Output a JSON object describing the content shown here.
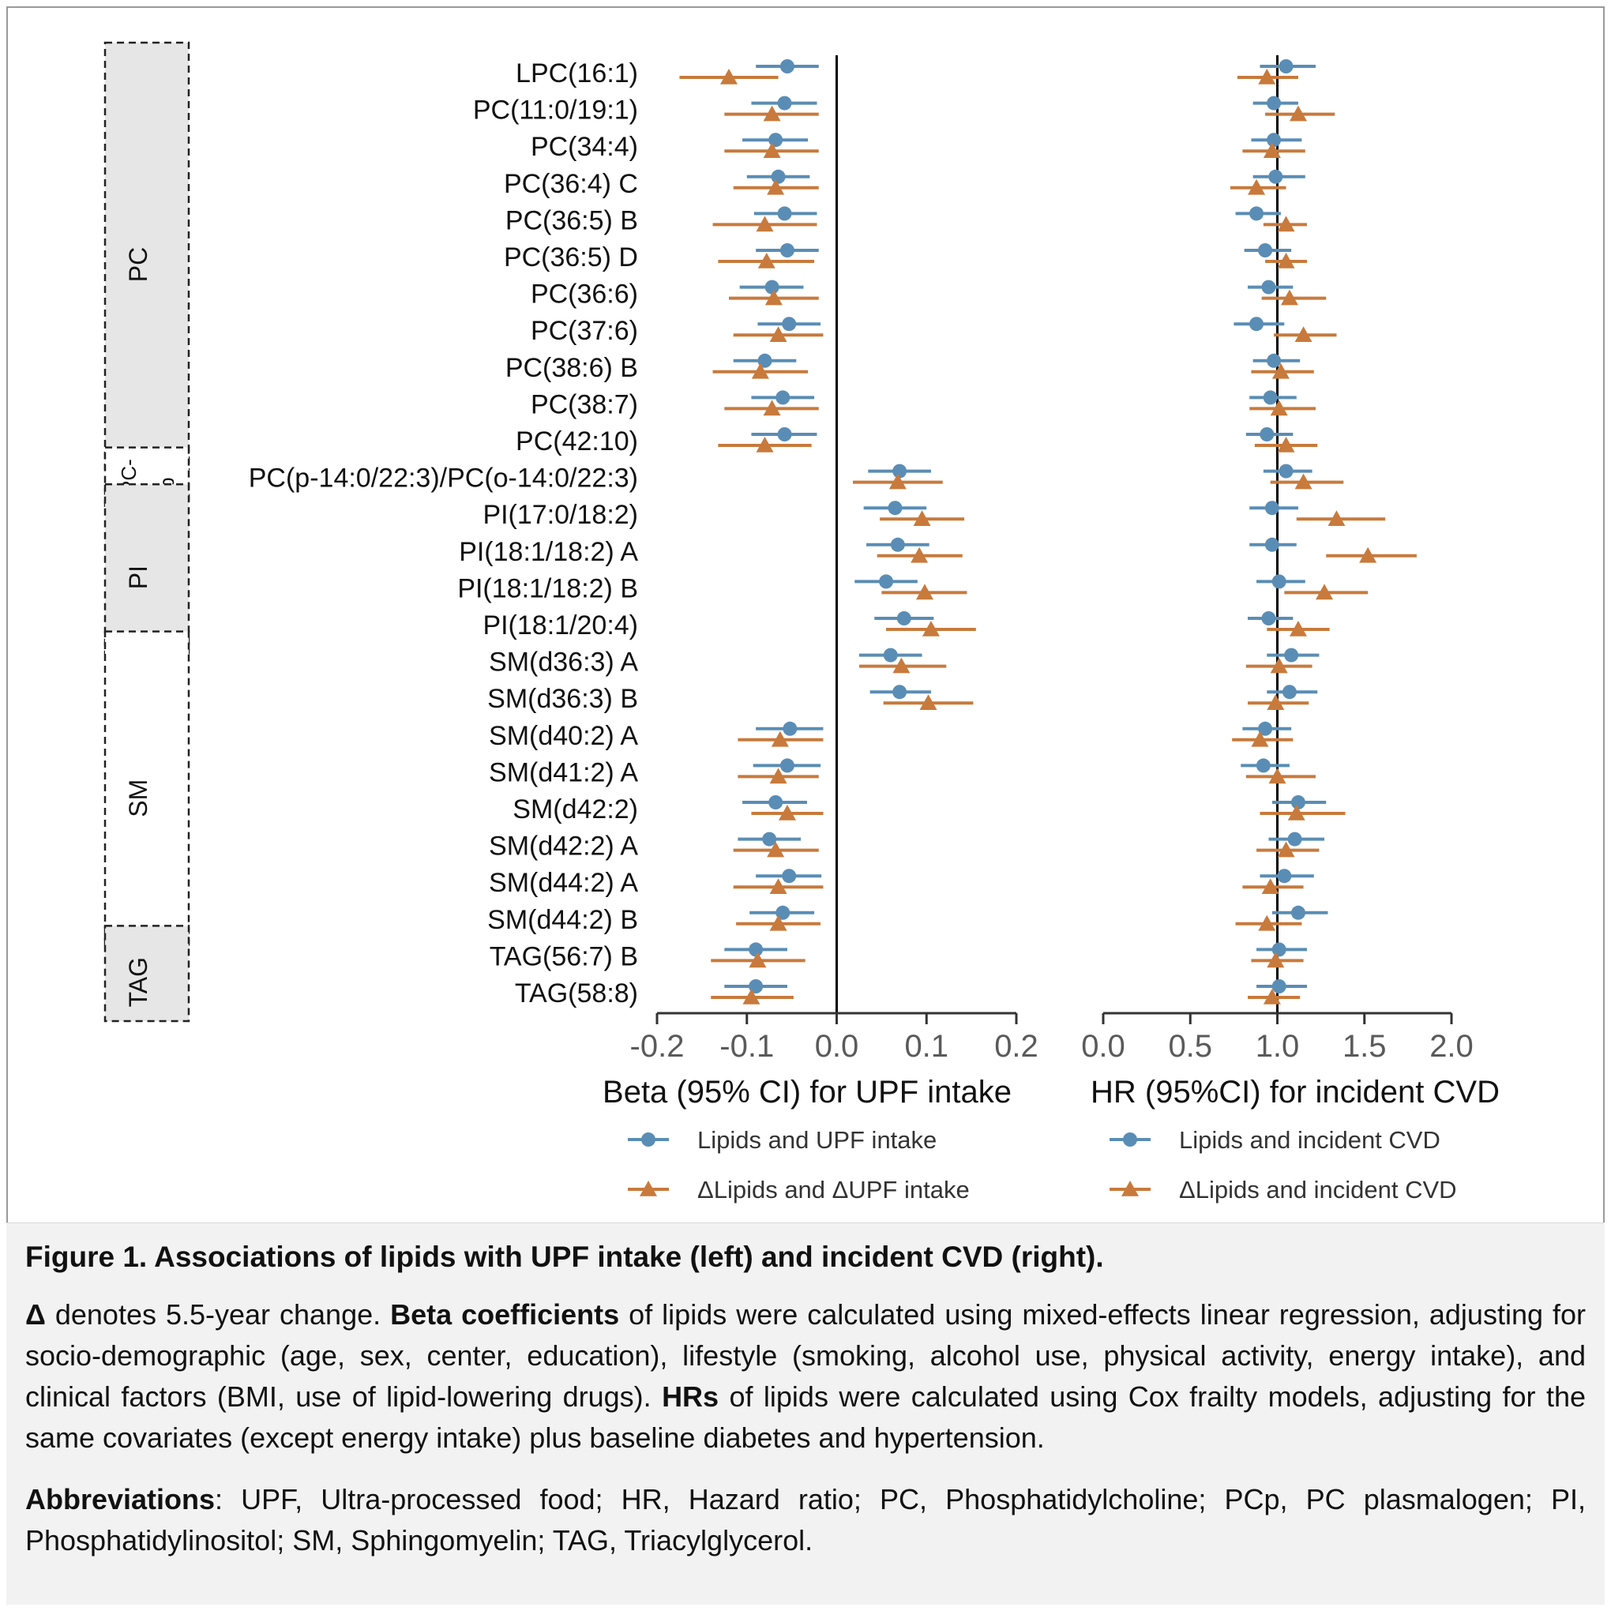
{
  "colors": {
    "blue": "#5a8db5",
    "orange": "#c87a3c",
    "axis": "#000000",
    "tick": "#5a5a5a",
    "group_fill": "#e6e6e6"
  },
  "chart_data": [
    {
      "type": "forest",
      "xlabel": "Beta (95% CI) for UPF intake",
      "xlim": [
        -0.2,
        0.2
      ],
      "ticks": [
        -0.2,
        -0.1,
        0.0,
        0.1,
        0.2
      ],
      "tick_labels": [
        "-0.2",
        "-0.1",
        "0.0",
        "0.1",
        "0.2"
      ],
      "reference": 0,
      "series": [
        {
          "name": "Lipids and UPF intake",
          "marker": "circle",
          "estimates": [
            -0.055,
            -0.058,
            -0.068,
            -0.065,
            -0.058,
            -0.055,
            -0.072,
            -0.053,
            -0.08,
            -0.06,
            -0.058,
            0.07,
            0.065,
            0.068,
            0.055,
            0.075,
            0.06,
            0.07,
            -0.052,
            -0.055,
            -0.068,
            -0.075,
            -0.053,
            -0.06,
            -0.09,
            -0.09
          ],
          "lower": [
            -0.09,
            -0.095,
            -0.105,
            -0.1,
            -0.092,
            -0.09,
            -0.108,
            -0.088,
            -0.115,
            -0.095,
            -0.095,
            0.035,
            0.03,
            0.033,
            0.02,
            0.042,
            0.025,
            0.037,
            -0.09,
            -0.093,
            -0.105,
            -0.11,
            -0.09,
            -0.097,
            -0.125,
            -0.125
          ],
          "upper": [
            -0.02,
            -0.022,
            -0.032,
            -0.03,
            -0.022,
            -0.02,
            -0.037,
            -0.018,
            -0.045,
            -0.025,
            -0.022,
            0.105,
            0.1,
            0.103,
            0.09,
            0.108,
            0.095,
            0.105,
            -0.015,
            -0.018,
            -0.033,
            -0.04,
            -0.017,
            -0.025,
            -0.055,
            -0.055
          ]
        },
        {
          "name": "ΔLipids and ΔUPF intake",
          "marker": "triangle",
          "estimates": [
            -0.12,
            -0.072,
            -0.072,
            -0.068,
            -0.08,
            -0.078,
            -0.07,
            -0.065,
            -0.085,
            -0.072,
            -0.08,
            0.068,
            0.095,
            0.092,
            0.098,
            0.105,
            0.072,
            0.102,
            -0.063,
            -0.065,
            -0.055,
            -0.068,
            -0.065,
            -0.065,
            -0.088,
            -0.095
          ],
          "lower": [
            -0.175,
            -0.125,
            -0.125,
            -0.115,
            -0.138,
            -0.132,
            -0.12,
            -0.115,
            -0.138,
            -0.125,
            -0.132,
            0.018,
            0.048,
            0.045,
            0.05,
            0.055,
            0.025,
            0.052,
            -0.11,
            -0.11,
            -0.095,
            -0.115,
            -0.115,
            -0.112,
            -0.14,
            -0.14
          ],
          "upper": [
            -0.065,
            -0.02,
            -0.02,
            -0.02,
            -0.022,
            -0.025,
            -0.02,
            -0.015,
            -0.032,
            -0.02,
            -0.028,
            0.118,
            0.142,
            0.14,
            0.145,
            0.155,
            0.122,
            0.152,
            -0.015,
            -0.02,
            -0.015,
            -0.02,
            -0.015,
            -0.018,
            -0.035,
            -0.048
          ]
        }
      ]
    },
    {
      "type": "forest",
      "xlabel": "HR (95%CI) for incident CVD",
      "xlim": [
        0.0,
        2.0
      ],
      "ticks": [
        0.0,
        0.5,
        1.0,
        1.5,
        2.0
      ],
      "tick_labels": [
        "0.0",
        "0.5",
        "1.0",
        "1.5",
        "2.0"
      ],
      "reference": 1,
      "series": [
        {
          "name": "Lipids and incident CVD",
          "marker": "circle",
          "estimates": [
            1.05,
            0.98,
            0.98,
            0.99,
            0.88,
            0.93,
            0.95,
            0.88,
            0.98,
            0.96,
            0.94,
            1.05,
            0.97,
            0.97,
            1.01,
            0.95,
            1.08,
            1.07,
            0.93,
            0.92,
            1.12,
            1.1,
            1.04,
            1.12,
            1.01,
            1.01
          ],
          "lower": [
            0.9,
            0.86,
            0.85,
            0.86,
            0.76,
            0.81,
            0.83,
            0.75,
            0.86,
            0.84,
            0.82,
            0.92,
            0.84,
            0.84,
            0.88,
            0.83,
            0.94,
            0.94,
            0.8,
            0.79,
            0.97,
            0.95,
            0.9,
            0.97,
            0.88,
            0.88
          ],
          "upper": [
            1.22,
            1.12,
            1.14,
            1.16,
            1.02,
            1.08,
            1.09,
            1.04,
            1.13,
            1.11,
            1.09,
            1.2,
            1.12,
            1.11,
            1.16,
            1.09,
            1.24,
            1.23,
            1.08,
            1.07,
            1.28,
            1.27,
            1.21,
            1.29,
            1.17,
            1.17
          ]
        },
        {
          "name": "ΔLipids and incident CVD",
          "marker": "triangle",
          "estimates": [
            0.94,
            1.12,
            0.97,
            0.88,
            1.05,
            1.05,
            1.07,
            1.15,
            1.02,
            1.01,
            1.05,
            1.15,
            1.34,
            1.52,
            1.27,
            1.12,
            1.01,
            0.99,
            0.9,
            1.0,
            1.11,
            1.05,
            0.96,
            0.94,
            0.99,
            0.97
          ],
          "lower": [
            0.77,
            0.93,
            0.8,
            0.73,
            0.92,
            0.93,
            0.91,
            0.98,
            0.85,
            0.84,
            0.87,
            0.96,
            1.11,
            1.28,
            1.04,
            0.94,
            0.82,
            0.83,
            0.74,
            0.82,
            0.9,
            0.88,
            0.8,
            0.76,
            0.85,
            0.83
          ],
          "upper": [
            1.12,
            1.33,
            1.16,
            1.05,
            1.17,
            1.17,
            1.28,
            1.34,
            1.21,
            1.22,
            1.23,
            1.38,
            1.62,
            1.8,
            1.52,
            1.3,
            1.2,
            1.18,
            1.09,
            1.22,
            1.39,
            1.24,
            1.15,
            1.14,
            1.15,
            1.13
          ]
        }
      ]
    }
  ],
  "lipids": [
    "LPC(16:1)",
    "PC(11:0/19:1)",
    "PC(34:4)",
    "PC(36:4) C",
    "PC(36:5) B",
    "PC(36:5) D",
    "PC(36:6)",
    "PC(37:6)",
    "PC(38:6) B",
    "PC(38:7)",
    "PC(42:10)",
    "PC(p-14:0/22:3)/PC(o-14:0/22:3)",
    "PI(17:0/18:2)",
    "PI(18:1/18:2) A",
    "PI(18:1/18:2) B",
    "PI(18:1/20:4)",
    "SM(d36:3) A",
    "SM(d36:3) B",
    "SM(d40:2) A",
    "SM(d41:2) A",
    "SM(d42:2)",
    "SM(d42:2) A",
    "SM(d44:2) A",
    "SM(d44:2) B",
    "TAG(56:7) B",
    "TAG(58:8)"
  ],
  "groups": [
    {
      "label": "PC",
      "first": 0,
      "last": 10,
      "filled": true
    },
    {
      "label": "PC-p",
      "first": 11,
      "last": 11,
      "filled": false
    },
    {
      "label": "PI",
      "first": 12,
      "last": 15,
      "filled": true
    },
    {
      "label": "SM",
      "first": 16,
      "last": 23,
      "filled": false
    },
    {
      "label": "TAG",
      "first": 24,
      "last": 25,
      "filled": true
    }
  ],
  "caption": {
    "title": "Figure 1. Associations of lipids with UPF intake (left) and incident CVD (right).",
    "p1_delta": "Δ",
    "p1_a": " denotes 5.5-year change. ",
    "p1_beta": "Beta coefficients",
    "p1_b": " of lipids were calculated using mixed-effects linear regression, adjusting for socio-demographic (age, sex, center, education), lifestyle (smoking, alcohol use, physical activity, energy intake), and clinical factors (BMI, use of lipid-lowering drugs). ",
    "p1_hrs": "HRs",
    "p1_c": " of lipids were calculated using Cox frailty models, adjusting for the same covariates (except energy intake) plus baseline diabetes and hypertension.",
    "p2_abbr": "Abbreviations",
    "p2_text": ": UPF, Ultra-processed food; HR, Hazard ratio;  PC, Phosphatidylcholine; PCp, PC plasmalogen; PI, Phosphatidylinositol; SM, Sphingomyelin; TAG, Triacylglycerol."
  }
}
